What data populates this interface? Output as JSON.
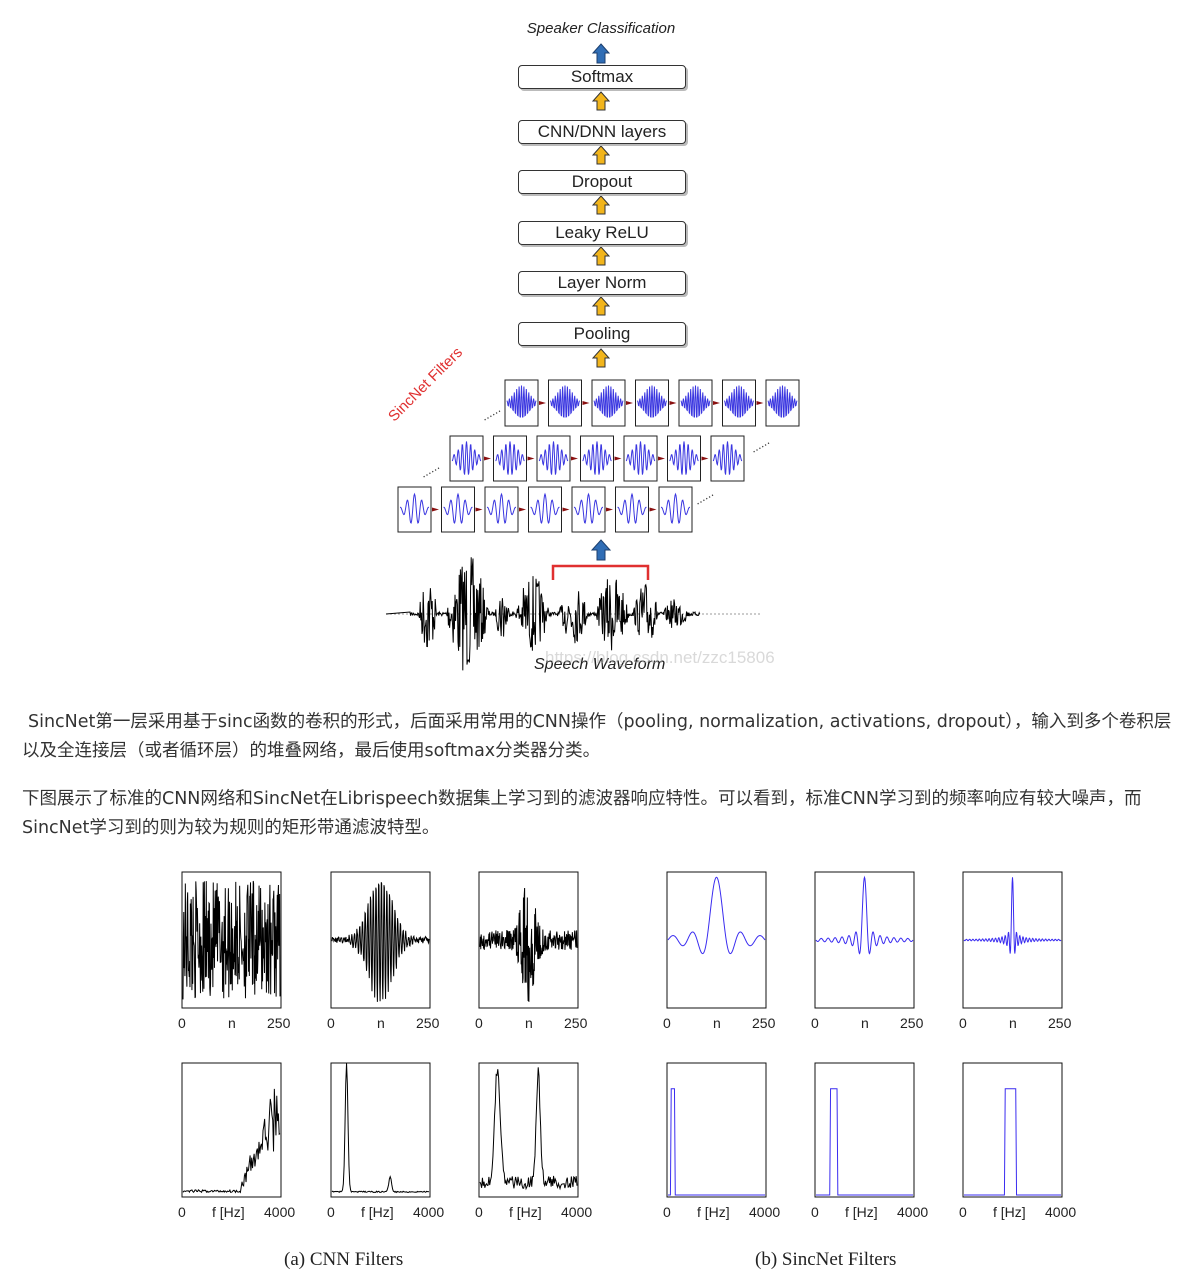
{
  "diagram": {
    "top_label": "Speaker Classification",
    "layers": [
      "Softmax",
      "CNN/DNN layers",
      "Dropout",
      "Leaky ReLU",
      "Layer Norm",
      "Pooling"
    ],
    "filters_label": "SincNet Filters",
    "waveform_label": "Speech Waveform",
    "watermark": "https://blog.csdn.net/zzc15806",
    "colors": {
      "arrow_top": "#2f6db5",
      "arrow_layers": "#f2b51c",
      "filters_label": "#e03030",
      "filter_wave": "#3a36e0",
      "bracket": "#e03030"
    }
  },
  "paragraphs": [
    "SincNet第一层采用基于sinc函数的卷积的形式，后面采用常用的CNN操作（pooling, normalization, activations, dropout），输入到多个卷积层以及全连接层（或者循环层）的堆叠网络，最后使用softmax分类器分类。",
    "下图展示了标准的CNN网络和SincNet在Librispeech数据集上学习到的滤波器响应特性。可以看到，标准CNN学习到的频率响应有较大噪声，而SincNet学习到的则为较为规则的矩形带通滤波特型。"
  ],
  "figure": {
    "time_axis": {
      "start": "0",
      "label": "n",
      "end": "250"
    },
    "freq_axis": {
      "start": "0",
      "label": "f [Hz]",
      "end": "4000"
    },
    "captions": [
      "(a) CNN Filters",
      "(b) SincNet Filters"
    ],
    "colors": {
      "cnn": "#000000",
      "sincnet": "#3a2cf0"
    }
  }
}
